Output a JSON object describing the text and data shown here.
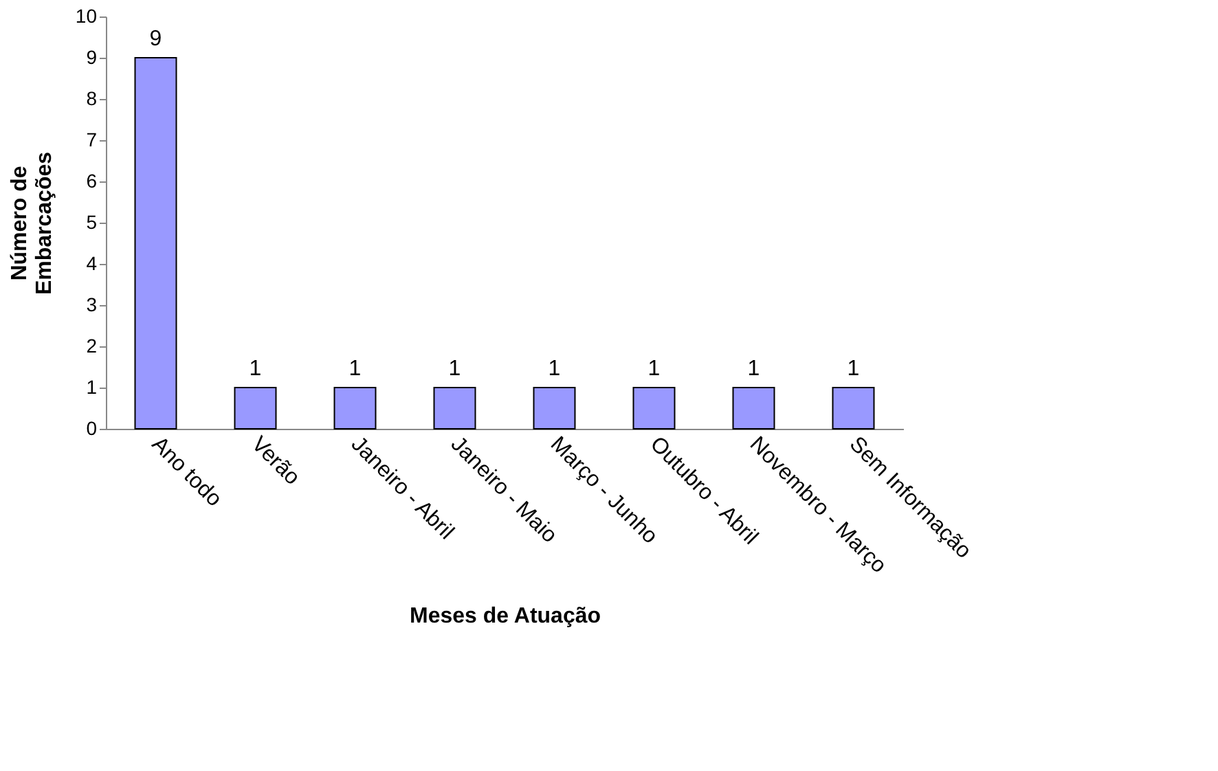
{
  "chart_data": {
    "type": "bar",
    "xlabel": "Meses de Atuação",
    "ylabel": "Número de\nEmbarcações",
    "categories": [
      "Ano todo",
      "Verão",
      "Janeiro - Abril",
      "Janeiro - Maio",
      "Março - Junho",
      "Outubro - Abril",
      "Novembro - Março",
      "Sem Informação"
    ],
    "values": [
      9,
      1,
      1,
      1,
      1,
      1,
      1,
      1
    ],
    "color": "#9999ff",
    "ylim": [
      0,
      10
    ],
    "yticks": [
      0,
      1,
      2,
      3,
      4,
      5,
      6,
      7,
      8,
      9,
      10
    ],
    "grid": false,
    "data_labels": true
  }
}
